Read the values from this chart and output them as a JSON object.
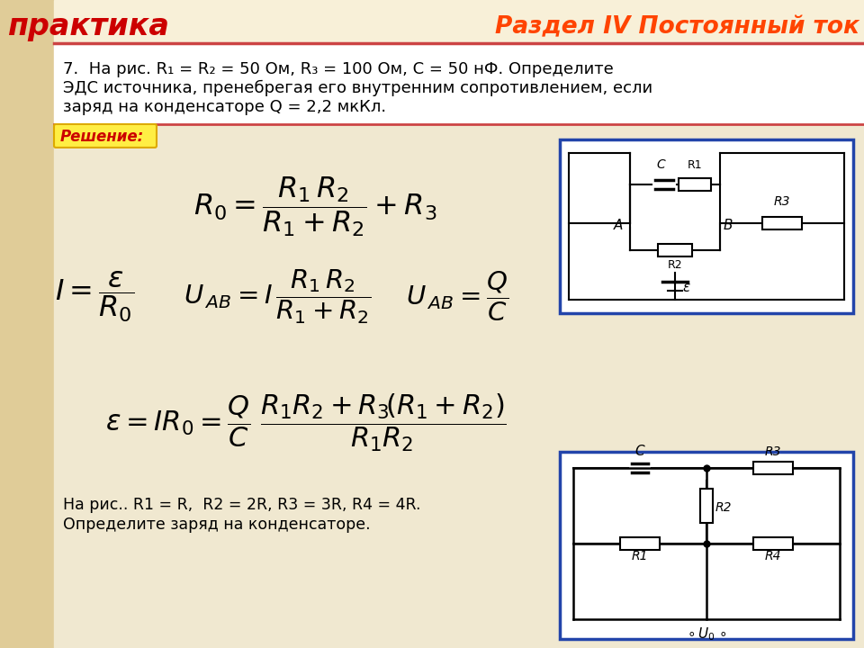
{
  "bg_color": "#f0e8d0",
  "left_strip_color": "#e0cc98",
  "header_bg_color": "#f8f0d8",
  "title_left": "практика",
  "title_left_color": "#cc0000",
  "title_right": "Раздел IV Постоянный ток",
  "title_right_color": "#ff4400",
  "problem_line1": "7.  На рис. R₁ = R₂ = 50 Ом, R₃ = 100 Ом, С = 50 нФ. Определите",
  "problem_line2": "ЭДС источника, пренебрегая его внутренним сопротивлением, если",
  "problem_line3": "заряд на конденсаторе Q = 2,2 мкКл.",
  "solution_label": "Решение:",
  "bottom_line1": "На рис.. R1 = R,  R2 = 2R, R3 = 3R, R4 = 4R.",
  "bottom_line2": "Определите заряд на конденсаторе.",
  "separator_color": "#cc4444",
  "circuit_border_color": "#2244aa",
  "wire_color": "#000000"
}
